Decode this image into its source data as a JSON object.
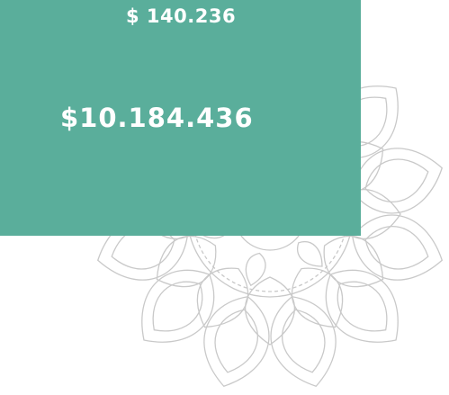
{
  "amounts": {
    "top": "$ 140.236",
    "main": "$10.184.436"
  }
}
